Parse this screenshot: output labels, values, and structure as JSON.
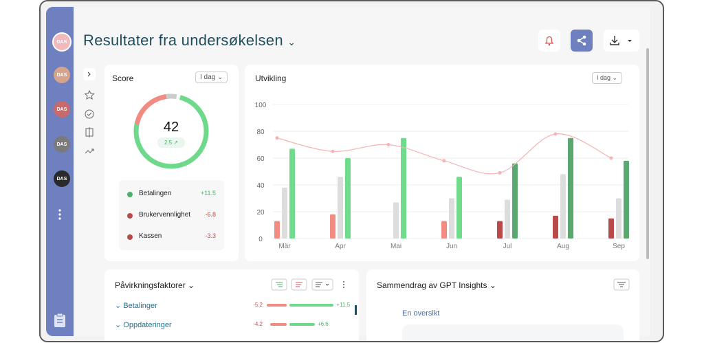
{
  "header": {
    "title": "Resultater fra undersøkelsen"
  },
  "sidebar": {
    "avatars": [
      "DAS",
      "DAS",
      "DAS",
      "DAS",
      "DAS"
    ]
  },
  "score_card": {
    "title": "Score",
    "period": "I dag",
    "score": 42,
    "delta": 2.5,
    "factors": [
      {
        "name": "Betalingen",
        "value": 11.5,
        "value_label": "+11.5",
        "color": "#4caf6a"
      },
      {
        "name": "Brukervennlighet",
        "value": -6.8,
        "value_label": "-6.8",
        "color": "#b84a4a"
      },
      {
        "name": "Kassen",
        "value": -3.3,
        "value_label": "-3.3",
        "color": "#b84a4a"
      }
    ]
  },
  "chart_data": {
    "type": "bar",
    "title": "Utvikling",
    "period": "I dag",
    "categories": [
      "Mär",
      "Apr",
      "Mai",
      "Jun",
      "Jul",
      "Aug",
      "Sep"
    ],
    "ylim": [
      0,
      100
    ],
    "yticks": [
      0,
      20,
      40,
      60,
      80,
      100
    ],
    "grid": true,
    "series": [
      {
        "values": [
          13,
          18,
          null,
          13,
          13,
          17,
          15
        ],
        "colors": [
          "#f28b82",
          "#f28b82",
          "#f28b82",
          "#f28b82",
          "#b84a4a",
          "#b84a4a",
          "#b84a4a"
        ]
      },
      {
        "values": [
          38,
          46,
          27,
          30,
          29,
          48,
          30
        ],
        "colors": [
          "#dddddd",
          "#dddddd",
          "#dddddd",
          "#dddddd",
          "#dddddd",
          "#dddddd",
          "#dddddd"
        ]
      },
      {
        "values": [
          67,
          60,
          75,
          46,
          56,
          75,
          58
        ],
        "colors": [
          "#6fdc8c",
          "#6fdc8c",
          "#6fdc8c",
          "#6fdc8c",
          "#5aa870",
          "#5aa870",
          "#5aa870"
        ]
      },
      {
        "type": "line",
        "color": "#f6b3b3",
        "values": [
          75,
          65,
          70,
          58,
          49,
          78,
          60
        ]
      }
    ]
  },
  "influence": {
    "title": "Påvirkningsfaktorer",
    "rows": [
      {
        "name": "Betalinger",
        "negative": -5.2,
        "positive": 11.5,
        "positive_label": "+11.5"
      },
      {
        "name": "Oppdateringer",
        "negative": -4.2,
        "positive": 6.6,
        "positive_label": "+6.6"
      }
    ]
  },
  "insights": {
    "title": "Sammendrag av GPT Insights",
    "link": "En oversikt"
  }
}
